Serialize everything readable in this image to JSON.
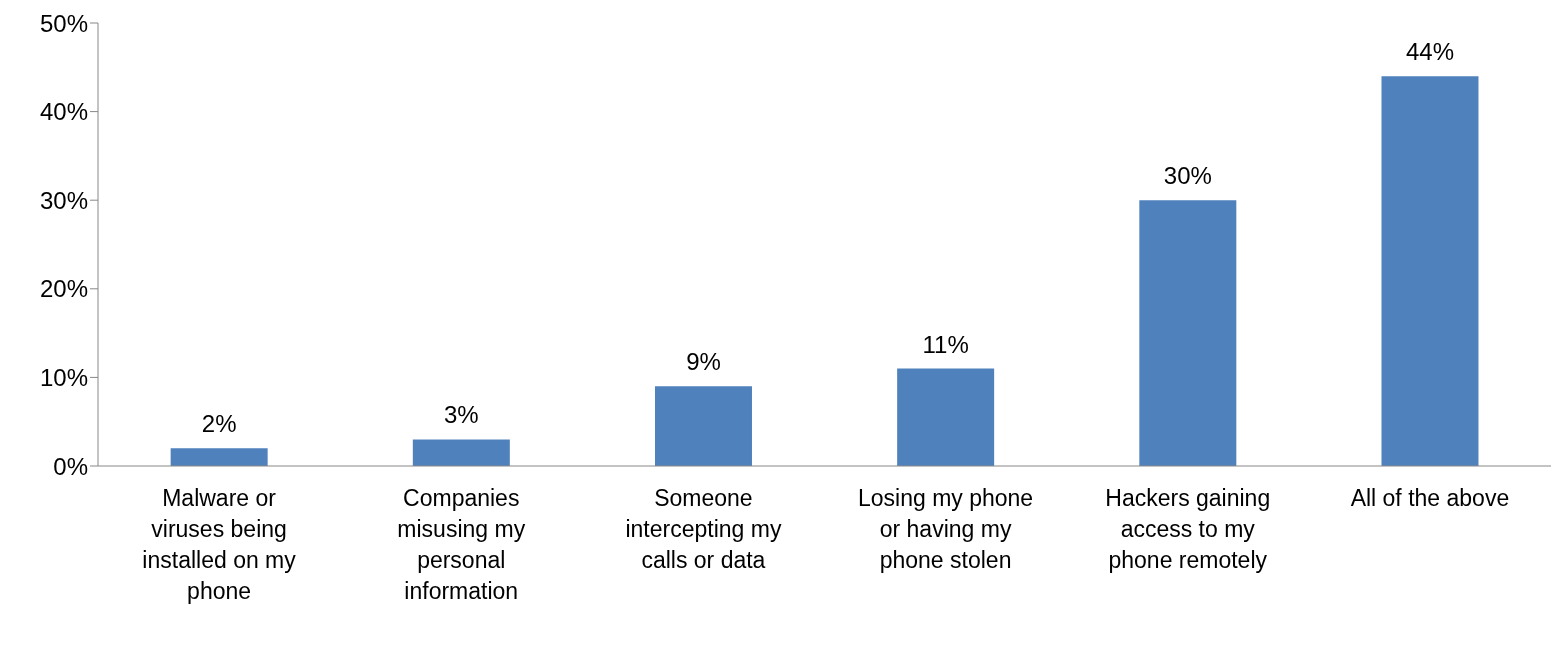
{
  "chart_data": {
    "type": "bar",
    "categories": [
      "Malware or viruses being installed on my phone",
      "Companies misusing my personal information",
      "Someone intercepting my calls or data",
      "Losing my phone or having my phone stolen",
      "Hackers gaining access to my phone remotely",
      "All of the above"
    ],
    "values": [
      2,
      3,
      9,
      11,
      30,
      44
    ],
    "color": "#4f81bd",
    "ylim": [
      0,
      50
    ],
    "yticks": [
      {
        "value": 0,
        "label": "0%"
      },
      {
        "value": 10,
        "label": "10%"
      },
      {
        "value": 20,
        "label": "20%"
      },
      {
        "value": 30,
        "label": "30%"
      },
      {
        "value": 40,
        "label": "40%"
      },
      {
        "value": 50,
        "label": "50%"
      }
    ],
    "value_labels": [
      "2%",
      "3%",
      "9%",
      "11%",
      "30%",
      "44%"
    ],
    "grid": false,
    "legend": false
  }
}
